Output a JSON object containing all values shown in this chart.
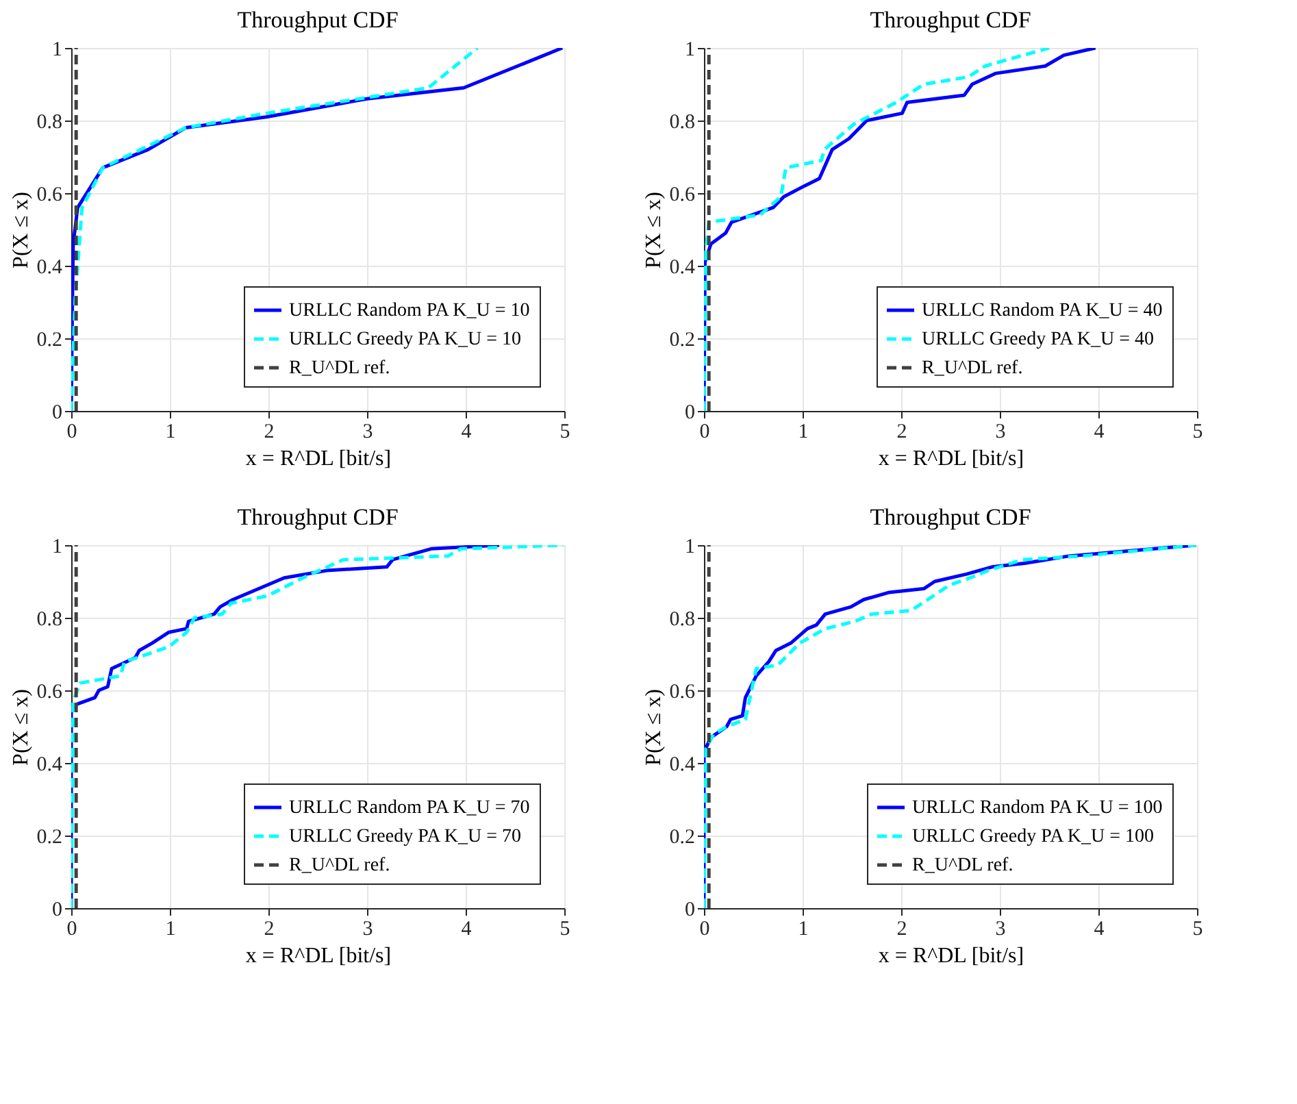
{
  "chart_data": [
    {
      "type": "line",
      "title": "Throughput CDF",
      "xlabel": "x = R^DL [bit/s]",
      "ylabel": "P(X ≤ x)",
      "xlim": [
        0,
        5
      ],
      "xticks": [
        0,
        1,
        2,
        3,
        4,
        5
      ],
      "ylim": [
        0,
        1
      ],
      "yticks": [
        0,
        0.2,
        0.4,
        0.6,
        0.8,
        1
      ],
      "grid": true,
      "legend": "bottom right",
      "series": [
        {
          "name": "URLLC Random PA K_U = 10",
          "color": "#0000ff",
          "line_style": "solid",
          "x": [
            0,
            0.01,
            0.02,
            0.065,
            0.32,
            0.78,
            1.16,
            1.98,
            3.0,
            3.98,
            4.98
          ],
          "values": [
            0,
            0.26,
            0.46,
            0.56,
            0.67,
            0.72,
            0.78,
            0.81,
            0.86,
            0.89,
            1.0
          ]
        },
        {
          "name": "URLLC Greedy PA K_U = 10",
          "color": "#00ffff",
          "line_style": "dashed",
          "x": [
            0,
            0.04,
            0.11,
            0.32,
            1.16,
            1.98,
            3.62,
            4.12
          ],
          "values": [
            0,
            0.31,
            0.56,
            0.67,
            0.78,
            0.82,
            0.89,
            1.0
          ]
        },
        {
          "name": "R_U^DL ref.",
          "color": "#404040",
          "line_style": "dashed",
          "x": [
            0.05,
            0.05
          ],
          "values": [
            0,
            1
          ]
        }
      ]
    },
    {
      "type": "line",
      "title": "Throughput CDF",
      "xlabel": "x = R^DL [bit/s]",
      "ylabel": "P(X ≤ x)",
      "xlim": [
        0,
        5
      ],
      "xticks": [
        0,
        1,
        2,
        3,
        4,
        5
      ],
      "ylim": [
        0,
        1
      ],
      "yticks": [
        0,
        0.2,
        0.4,
        0.6,
        0.8,
        1
      ],
      "grid": true,
      "legend": "bottom right",
      "series": [
        {
          "name": "URLLC Random PA K_U = 40",
          "color": "#0000ff",
          "line_style": "solid",
          "x": [
            0,
            0.01,
            0.07,
            0.22,
            0.28,
            0.7,
            0.81,
            1.02,
            1.17,
            1.3,
            1.47,
            1.65,
            2.01,
            2.06,
            2.64,
            2.72,
            2.96,
            3.46,
            3.65,
            3.97
          ],
          "values": [
            0,
            0.41,
            0.46,
            0.49,
            0.52,
            0.56,
            0.59,
            0.62,
            0.64,
            0.72,
            0.75,
            0.8,
            0.82,
            0.85,
            0.87,
            0.9,
            0.93,
            0.95,
            0.98,
            1.0
          ]
        },
        {
          "name": "URLLC Greedy PA K_U = 40",
          "color": "#00ffff",
          "line_style": "dashed",
          "x": [
            0,
            0.02,
            0.05,
            0.57,
            0.78,
            0.83,
            1.19,
            1.22,
            1.52,
            1.95,
            2.23,
            2.68,
            2.85,
            3.5
          ],
          "values": [
            0,
            0.44,
            0.52,
            0.54,
            0.59,
            0.67,
            0.69,
            0.72,
            0.79,
            0.85,
            0.9,
            0.92,
            0.95,
            1.0
          ]
        },
        {
          "name": "R_U^DL ref.",
          "color": "#404040",
          "line_style": "dashed",
          "x": [
            0.05,
            0.05
          ],
          "values": [
            0,
            1
          ]
        }
      ]
    },
    {
      "type": "line",
      "title": "Throughput CDF",
      "xlabel": "x = R^DL [bit/s]",
      "ylabel": "P(X ≤ x)",
      "xlim": [
        0,
        5
      ],
      "xticks": [
        0,
        1,
        2,
        3,
        4,
        5
      ],
      "ylim": [
        0,
        1
      ],
      "yticks": [
        0,
        0.2,
        0.4,
        0.6,
        0.8,
        1
      ],
      "grid": true,
      "legend": "bottom right",
      "series": [
        {
          "name": "URLLC Random PA K_U = 70",
          "color": "#0000ff",
          "line_style": "solid",
          "x": [
            0,
            0.0,
            0.04,
            0.24,
            0.28,
            0.37,
            0.41,
            0.65,
            0.69,
            0.82,
            0.99,
            1.17,
            1.19,
            1.45,
            1.51,
            1.64,
            2.16,
            2.59,
            3.2,
            3.26,
            3.65,
            4.34
          ],
          "values": [
            0,
            0.54,
            0.56,
            0.58,
            0.6,
            0.61,
            0.66,
            0.69,
            0.71,
            0.73,
            0.76,
            0.77,
            0.79,
            0.81,
            0.83,
            0.85,
            0.91,
            0.93,
            0.94,
            0.96,
            0.99,
            1.0
          ]
        },
        {
          "name": "URLLC Greedy PA K_U = 70",
          "color": "#00ffff",
          "line_style": "dashed",
          "x": [
            0,
            0.02,
            0.09,
            0.5,
            0.54,
            0.67,
            0.99,
            1.17,
            1.25,
            1.53,
            1.62,
            1.99,
            2.35,
            2.76,
            3.82,
            3.95,
            4.99
          ],
          "values": [
            0,
            0.57,
            0.62,
            0.64,
            0.68,
            0.69,
            0.72,
            0.76,
            0.8,
            0.81,
            0.84,
            0.86,
            0.91,
            0.96,
            0.97,
            0.99,
            1.0
          ]
        },
        {
          "name": "R_U^DL ref.",
          "color": "#404040",
          "line_style": "dashed",
          "x": [
            0.05,
            0.05
          ],
          "values": [
            0,
            1
          ]
        }
      ]
    },
    {
      "type": "line",
      "title": "Throughput CDF",
      "xlabel": "x = R^DL [bit/s]",
      "ylabel": "P(X ≤ x)",
      "xlim": [
        0,
        5
      ],
      "xticks": [
        0,
        1,
        2,
        3,
        4,
        5
      ],
      "ylim": [
        0,
        1
      ],
      "yticks": [
        0,
        0.2,
        0.4,
        0.6,
        0.8,
        1
      ],
      "grid": true,
      "legend": "bottom right",
      "series": [
        {
          "name": "URLLC Random PA K_U = 100",
          "color": "#0000ff",
          "line_style": "solid",
          "x": [
            0,
            0.0,
            0.07,
            0.23,
            0.27,
            0.39,
            0.42,
            0.53,
            0.66,
            0.73,
            0.88,
            1.05,
            1.14,
            1.23,
            1.49,
            1.62,
            1.88,
            2.23,
            2.34,
            2.66,
            2.92,
            3.25,
            3.7,
            4.99
          ],
          "values": [
            0,
            0.43,
            0.47,
            0.5,
            0.52,
            0.53,
            0.58,
            0.64,
            0.68,
            0.71,
            0.73,
            0.77,
            0.78,
            0.81,
            0.83,
            0.85,
            0.87,
            0.88,
            0.9,
            0.92,
            0.94,
            0.95,
            0.97,
            1.0
          ]
        },
        {
          "name": "URLLC Greedy PA K_U = 100",
          "color": "#00ffff",
          "line_style": "dashed",
          "x": [
            0,
            0.02,
            0.1,
            0.23,
            0.42,
            0.53,
            0.75,
            0.97,
            1.23,
            1.53,
            1.7,
            2.1,
            2.27,
            2.49,
            2.7,
            2.88,
            3.23,
            3.83,
            4.99
          ],
          "values": [
            0,
            0.44,
            0.48,
            0.5,
            0.52,
            0.66,
            0.67,
            0.73,
            0.77,
            0.79,
            0.81,
            0.82,
            0.85,
            0.89,
            0.91,
            0.93,
            0.96,
            0.97,
            1.0
          ]
        },
        {
          "name": "R_U^DL ref.",
          "color": "#404040",
          "line_style": "dashed",
          "x": [
            0.05,
            0.05
          ],
          "values": [
            0,
            1
          ]
        }
      ]
    }
  ]
}
